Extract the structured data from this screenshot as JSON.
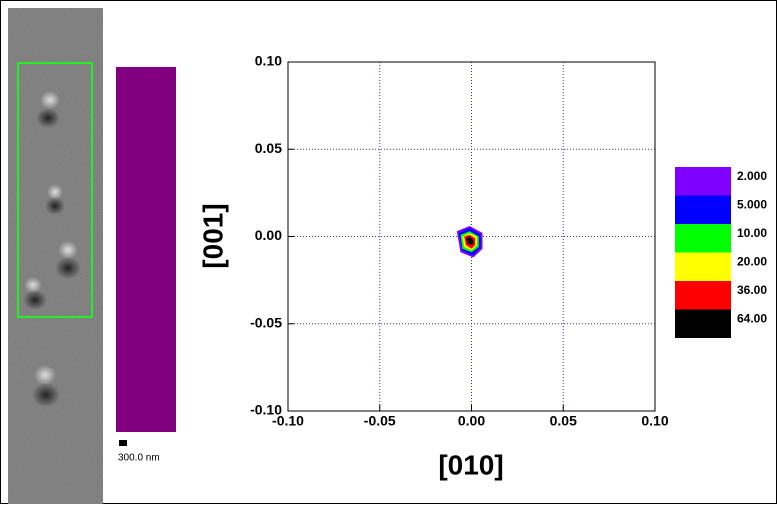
{
  "chart_data": {
    "type": "contour",
    "xlabel": "[010]",
    "ylabel": "[001]",
    "scale_bar_label": "300.0 nm",
    "xlim": [
      -0.1,
      0.1
    ],
    "ylim": [
      -0.1,
      0.1
    ],
    "xticks": [
      {
        "value": -0.1,
        "label": "-0.10"
      },
      {
        "value": -0.05,
        "label": "-0.05"
      },
      {
        "value": 0,
        "label": "0.00"
      },
      {
        "value": 0.05,
        "label": "0.05"
      },
      {
        "value": 0.1,
        "label": "0.10"
      }
    ],
    "yticks": [
      {
        "value": -0.1,
        "label": "-0.10"
      },
      {
        "value": -0.05,
        "label": "-0.05"
      },
      {
        "value": 0,
        "label": "0.00"
      },
      {
        "value": 0.05,
        "label": "0.05"
      },
      {
        "value": 0.1,
        "label": "0.10"
      }
    ],
    "grid": true,
    "grid_color": "#3333cc",
    "levels": [
      {
        "value": 2,
        "label": "2.000",
        "color": "#8000ff",
        "x": [
          -0.008,
          -0.001,
          0.006,
          0.006,
          0.001,
          -0.006
        ],
        "y": [
          0.003,
          0.006,
          0.002,
          -0.007,
          -0.012,
          -0.009
        ]
      },
      {
        "value": 5,
        "label": "5.000",
        "color": "#0000ff",
        "x": [
          -0.007,
          -0.001,
          0.005,
          0.005,
          0.001,
          -0.005
        ],
        "y": [
          0.002,
          0.005,
          0.001,
          -0.006,
          -0.011,
          -0.008
        ]
      },
      {
        "value": 10,
        "label": "10.00",
        "color": "#00ff00",
        "x": [
          -0.006,
          -0.001,
          0.004,
          0.004,
          0.0,
          -0.005
        ],
        "y": [
          0.001,
          0.003,
          0.0,
          -0.006,
          -0.009,
          -0.007
        ]
      },
      {
        "value": 20,
        "label": "20.00",
        "color": "#ffff00",
        "x": [
          -0.005,
          -0.001,
          0.003,
          0.003,
          0.0,
          -0.004
        ],
        "y": [
          0.0,
          0.002,
          0.0,
          -0.005,
          -0.008,
          -0.006
        ]
      },
      {
        "value": 36,
        "label": "36.00",
        "color": "#ff0000",
        "x": [
          -0.004,
          -0.001,
          0.002,
          0.002,
          0.0,
          -0.003
        ],
        "y": [
          0.0,
          0.001,
          -0.001,
          -0.005,
          -0.007,
          -0.005
        ]
      },
      {
        "value": 64,
        "label": "64.00",
        "color": "#000000",
        "x": [
          -0.003,
          -0.001,
          0.001,
          0.001,
          0.0,
          -0.002
        ],
        "y": [
          -0.001,
          0.0,
          -0.002,
          -0.004,
          -0.005,
          -0.004
        ]
      }
    ]
  }
}
